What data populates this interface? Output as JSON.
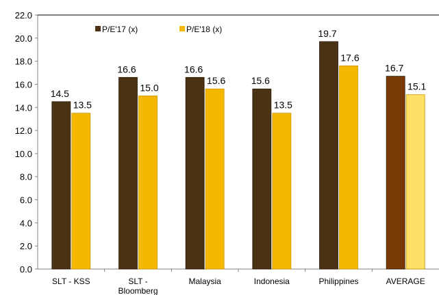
{
  "chart_data": {
    "type": "bar",
    "categories": [
      "SLT - KSS",
      "SLT -\nBloomberg",
      "Malaysia",
      "Indonesia",
      "Philippines",
      "AVERAGE"
    ],
    "series": [
      {
        "name": "P/E'17 (x)",
        "values": [
          14.5,
          16.6,
          16.6,
          15.6,
          19.7,
          16.7
        ],
        "color": "#4a3214"
      },
      {
        "name": "P/E'18 (x)",
        "values": [
          13.5,
          15.0,
          15.6,
          13.5,
          17.6,
          15.1
        ],
        "color": "#f5b800"
      }
    ],
    "highlight": {
      "category": "AVERAGE",
      "colors": [
        "#7a3a06",
        "#ffe066"
      ]
    },
    "ylim": [
      0,
      22
    ],
    "ytick_step": 2,
    "ytick_labels": [
      "0.0",
      "2.0",
      "4.0",
      "6.0",
      "8.0",
      "10.0",
      "12.0",
      "14.0",
      "16.0",
      "18.0",
      "20.0",
      "22.0"
    ],
    "grid": false,
    "legend_position": "top-left",
    "title": "",
    "xlabel": "",
    "ylabel": ""
  }
}
